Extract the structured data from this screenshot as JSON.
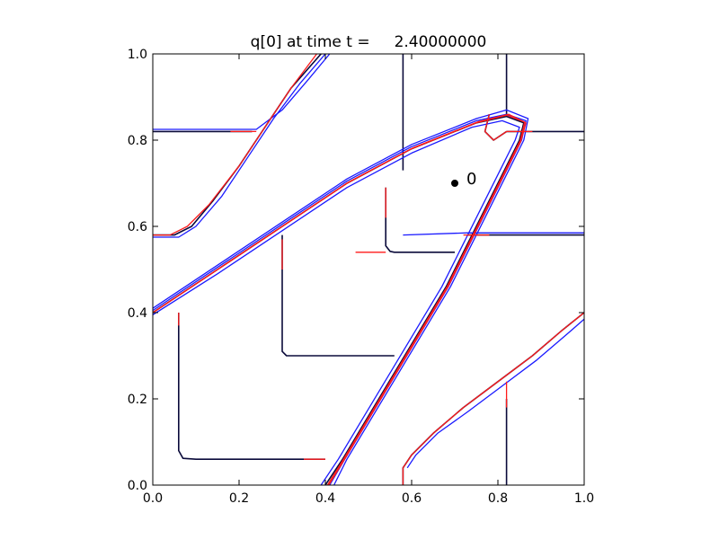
{
  "chart_data": {
    "type": "line",
    "title": "q[0] at time t =     2.40000000",
    "xlabel": "",
    "ylabel": "",
    "xlim": [
      0.0,
      1.0
    ],
    "ylim": [
      0.0,
      1.0
    ],
    "x_ticks": [
      "0.0",
      "0.2",
      "0.4",
      "0.6",
      "0.8",
      "1.0"
    ],
    "y_ticks": [
      "0.0",
      "0.2",
      "0.4",
      "0.6",
      "0.8",
      "1.0"
    ],
    "grid": false,
    "legend": "none",
    "colors": {
      "dark": "#0a0a3a",
      "blue": "#1a1aff",
      "red": "#ff1a1a",
      "axes": "#000000"
    },
    "series": [
      {
        "color": "dark",
        "segments": [
          [
            [
              0.0,
              0.82
            ],
            [
              0.23,
              0.82
            ]
          ],
          [
            [
              0.0,
              0.58
            ],
            [
              0.05,
              0.58
            ],
            [
              0.09,
              0.6
            ],
            [
              0.14,
              0.66
            ],
            [
              0.2,
              0.74
            ],
            [
              0.26,
              0.83
            ],
            [
              0.32,
              0.92
            ],
            [
              0.39,
              1.0
            ]
          ],
          [
            [
              0.0,
              0.4
            ],
            [
              0.15,
              0.5
            ],
            [
              0.3,
              0.6
            ],
            [
              0.45,
              0.7
            ],
            [
              0.6,
              0.78
            ],
            [
              0.75,
              0.84
            ],
            [
              0.82,
              0.855
            ],
            [
              0.86,
              0.84
            ],
            [
              0.85,
              0.8
            ],
            [
              0.82,
              0.74
            ],
            [
              0.78,
              0.66
            ],
            [
              0.73,
              0.56
            ],
            [
              0.68,
              0.46
            ],
            [
              0.62,
              0.36
            ],
            [
              0.56,
              0.26
            ],
            [
              0.5,
              0.16
            ],
            [
              0.44,
              0.06
            ],
            [
              0.4,
              0.0
            ]
          ],
          [
            [
              0.58,
              0.0
            ],
            [
              0.58,
              0.04
            ],
            [
              0.6,
              0.07
            ],
            [
              0.65,
              0.12
            ],
            [
              0.72,
              0.18
            ],
            [
              0.8,
              0.24
            ],
            [
              0.88,
              0.3
            ],
            [
              0.95,
              0.36
            ],
            [
              1.0,
              0.4
            ]
          ],
          [
            [
              0.82,
              0.0
            ],
            [
              0.82,
              0.2
            ]
          ],
          [
            [
              0.06,
              0.4
            ],
            [
              0.06,
              0.08
            ],
            [
              0.07,
              0.062
            ],
            [
              0.1,
              0.06
            ],
            [
              0.4,
              0.06
            ]
          ],
          [
            [
              0.3,
              0.58
            ],
            [
              0.3,
              0.31
            ],
            [
              0.31,
              0.3
            ],
            [
              0.33,
              0.3
            ],
            [
              0.56,
              0.3
            ]
          ],
          [
            [
              0.54,
              0.69
            ],
            [
              0.54,
              0.555
            ],
            [
              0.55,
              0.542
            ],
            [
              0.56,
              0.54
            ],
            [
              0.7,
              0.54
            ]
          ],
          [
            [
              0.58,
              1.0
            ],
            [
              0.58,
              0.73
            ]
          ],
          [
            [
              0.82,
              1.0
            ],
            [
              0.82,
              0.86
            ]
          ],
          [
            [
              0.73,
              0.58
            ],
            [
              1.0,
              0.58
            ]
          ],
          [
            [
              0.82,
              0.82
            ],
            [
              1.0,
              0.82
            ]
          ],
          [
            [
              0.78,
              0.86
            ],
            [
              0.77,
              0.82
            ],
            [
              0.79,
              0.8
            ],
            [
              0.82,
              0.82
            ]
          ]
        ]
      },
      {
        "color": "blue",
        "segments": [
          [
            [
              0.0,
              0.825
            ],
            [
              0.24,
              0.825
            ],
            [
              0.3,
              0.87
            ],
            [
              0.36,
              0.94
            ],
            [
              0.41,
              1.0
            ]
          ],
          [
            [
              0.0,
              0.575
            ],
            [
              0.06,
              0.575
            ],
            [
              0.1,
              0.6
            ],
            [
              0.16,
              0.67
            ],
            [
              0.22,
              0.76
            ],
            [
              0.28,
              0.85
            ],
            [
              0.34,
              0.93
            ],
            [
              0.4,
              1.0
            ]
          ],
          [
            [
              0.0,
              0.41
            ],
            [
              0.15,
              0.51
            ],
            [
              0.3,
              0.61
            ],
            [
              0.45,
              0.71
            ],
            [
              0.6,
              0.79
            ],
            [
              0.75,
              0.85
            ],
            [
              0.82,
              0.87
            ],
            [
              0.87,
              0.85
            ],
            [
              0.86,
              0.8
            ],
            [
              0.83,
              0.74
            ],
            [
              0.79,
              0.66
            ],
            [
              0.74,
              0.56
            ],
            [
              0.69,
              0.46
            ],
            [
              0.63,
              0.36
            ],
            [
              0.57,
              0.26
            ],
            [
              0.51,
              0.16
            ],
            [
              0.45,
              0.06
            ],
            [
              0.42,
              0.0
            ]
          ],
          [
            [
              0.0,
              0.395
            ],
            [
              0.15,
              0.49
            ],
            [
              0.3,
              0.59
            ],
            [
              0.45,
              0.69
            ],
            [
              0.6,
              0.77
            ],
            [
              0.74,
              0.83
            ],
            [
              0.81,
              0.845
            ],
            [
              0.85,
              0.83
            ],
            [
              0.84,
              0.8
            ],
            [
              0.81,
              0.74
            ],
            [
              0.77,
              0.66
            ],
            [
              0.72,
              0.56
            ],
            [
              0.67,
              0.46
            ],
            [
              0.61,
              0.36
            ],
            [
              0.55,
              0.26
            ],
            [
              0.49,
              0.16
            ],
            [
              0.43,
              0.06
            ],
            [
              0.39,
              0.0
            ]
          ],
          [
            [
              0.0,
              0.405
            ],
            [
              0.15,
              0.505
            ],
            [
              0.3,
              0.605
            ],
            [
              0.45,
              0.705
            ],
            [
              0.6,
              0.785
            ],
            [
              0.75,
              0.845
            ],
            [
              0.82,
              0.86
            ],
            [
              0.865,
              0.845
            ],
            [
              0.855,
              0.8
            ],
            [
              0.825,
              0.74
            ],
            [
              0.785,
              0.66
            ],
            [
              0.735,
              0.56
            ],
            [
              0.685,
              0.46
            ],
            [
              0.625,
              0.36
            ],
            [
              0.565,
              0.26
            ],
            [
              0.505,
              0.16
            ],
            [
              0.445,
              0.06
            ],
            [
              0.41,
              0.0
            ]
          ],
          [
            [
              0.59,
              0.04
            ],
            [
              0.61,
              0.07
            ],
            [
              0.66,
              0.12
            ],
            [
              0.73,
              0.17
            ],
            [
              0.81,
              0.23
            ],
            [
              0.89,
              0.29
            ],
            [
              0.96,
              0.35
            ],
            [
              1.0,
              0.385
            ]
          ],
          [
            [
              0.58,
              0.58
            ],
            [
              0.73,
              0.585
            ],
            [
              1.0,
              0.585
            ]
          ]
        ]
      },
      {
        "color": "red",
        "segments": [
          [
            [
              0.18,
              0.82
            ],
            [
              0.24,
              0.82
            ]
          ],
          [
            [
              0.0,
              0.58
            ],
            [
              0.04,
              0.58
            ],
            [
              0.08,
              0.6
            ],
            [
              0.13,
              0.65
            ],
            [
              0.2,
              0.74
            ],
            [
              0.26,
              0.83
            ],
            [
              0.32,
              0.92
            ],
            [
              0.38,
              1.0
            ]
          ],
          [
            [
              0.0,
              0.4
            ],
            [
              0.15,
              0.5
            ],
            [
              0.3,
              0.6
            ],
            [
              0.45,
              0.7
            ],
            [
              0.6,
              0.78
            ],
            [
              0.75,
              0.84
            ],
            [
              0.82,
              0.858
            ],
            [
              0.862,
              0.842
            ],
            [
              0.852,
              0.8
            ],
            [
              0.822,
              0.74
            ],
            [
              0.782,
              0.66
            ],
            [
              0.732,
              0.56
            ],
            [
              0.682,
              0.46
            ],
            [
              0.622,
              0.36
            ],
            [
              0.562,
              0.26
            ],
            [
              0.502,
              0.16
            ],
            [
              0.442,
              0.06
            ],
            [
              0.405,
              0.0
            ]
          ],
          [
            [
              0.005,
              0.403
            ],
            [
              0.155,
              0.503
            ],
            [
              0.305,
              0.603
            ],
            [
              0.455,
              0.703
            ],
            [
              0.605,
              0.783
            ],
            [
              0.755,
              0.843
            ],
            [
              0.825,
              0.86
            ],
            [
              0.865,
              0.84
            ],
            [
              0.853,
              0.797
            ],
            [
              0.823,
              0.737
            ],
            [
              0.783,
              0.657
            ],
            [
              0.733,
              0.557
            ],
            [
              0.683,
              0.457
            ],
            [
              0.623,
              0.357
            ],
            [
              0.563,
              0.257
            ],
            [
              0.503,
              0.157
            ],
            [
              0.443,
              0.057
            ],
            [
              0.408,
              0.0
            ]
          ],
          [
            [
              0.06,
              0.4
            ],
            [
              0.06,
              0.37
            ]
          ],
          [
            [
              0.3,
              0.57
            ],
            [
              0.3,
              0.5
            ]
          ],
          [
            [
              0.54,
              0.69
            ],
            [
              0.54,
              0.62
            ]
          ],
          [
            [
              0.35,
              0.06
            ],
            [
              0.4,
              0.06
            ]
          ],
          [
            [
              0.47,
              0.54
            ],
            [
              0.54,
              0.54
            ]
          ],
          [
            [
              0.58,
              0.0
            ],
            [
              0.58,
              0.04
            ],
            [
              0.6,
              0.07
            ],
            [
              0.65,
              0.12
            ],
            [
              0.72,
              0.18
            ],
            [
              0.8,
              0.24
            ],
            [
              0.88,
              0.3
            ],
            [
              0.95,
              0.36
            ],
            [
              1.0,
              0.4
            ]
          ],
          [
            [
              0.82,
              0.24
            ],
            [
              0.82,
              0.18
            ]
          ],
          [
            [
              0.72,
              0.58
            ],
            [
              0.78,
              0.58
            ]
          ],
          [
            [
              0.78,
              0.86
            ],
            [
              0.77,
              0.82
            ],
            [
              0.79,
              0.8
            ],
            [
              0.82,
              0.82
            ],
            [
              0.88,
              0.82
            ]
          ]
        ]
      }
    ],
    "points": [
      {
        "x": 0.7,
        "y": 0.7,
        "label": "0"
      }
    ]
  }
}
